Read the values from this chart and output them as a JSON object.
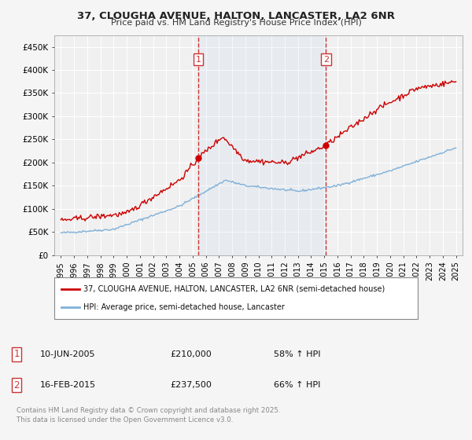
{
  "title_line1": "37, CLOUGHA AVENUE, HALTON, LANCASTER, LA2 6NR",
  "title_line2": "Price paid vs. HM Land Registry's House Price Index (HPI)",
  "background_color": "#f5f5f5",
  "plot_bg_color": "#f0f0f0",
  "grid_color": "#ffffff",
  "red_line_color": "#cc0000",
  "blue_line_color": "#7fb0d8",
  "vline_color": "#cc3333",
  "sale1_date_num": 2005.44,
  "sale2_date_num": 2015.12,
  "sale1_label": "1",
  "sale2_label": "2",
  "sale1_price": 210000,
  "sale2_price": 237500,
  "ylim_min": 0,
  "ylim_max": 475000,
  "xlim_min": 1994.5,
  "xlim_max": 2025.5,
  "yticks": [
    0,
    50000,
    100000,
    150000,
    200000,
    250000,
    300000,
    350000,
    400000,
    450000
  ],
  "ytick_labels": [
    "£0",
    "£50K",
    "£100K",
    "£150K",
    "£200K",
    "£250K",
    "£300K",
    "£350K",
    "£400K",
    "£450K"
  ],
  "xticks": [
    1995,
    1996,
    1997,
    1998,
    1999,
    2000,
    2001,
    2002,
    2003,
    2004,
    2005,
    2006,
    2007,
    2008,
    2009,
    2010,
    2011,
    2012,
    2013,
    2014,
    2015,
    2016,
    2017,
    2018,
    2019,
    2020,
    2021,
    2022,
    2023,
    2024,
    2025
  ],
  "legend_red_label": "37, CLOUGHA AVENUE, HALTON, LANCASTER, LA2 6NR (semi-detached house)",
  "legend_blue_label": "HPI: Average price, semi-detached house, Lancaster",
  "annotation1_date": "10-JUN-2005",
  "annotation1_price": "£210,000",
  "annotation1_hpi": "58% ↑ HPI",
  "annotation2_date": "16-FEB-2015",
  "annotation2_price": "£237,500",
  "annotation2_hpi": "66% ↑ HPI",
  "footnote": "Contains HM Land Registry data © Crown copyright and database right 2025.\nThis data is licensed under the Open Government Licence v3.0."
}
